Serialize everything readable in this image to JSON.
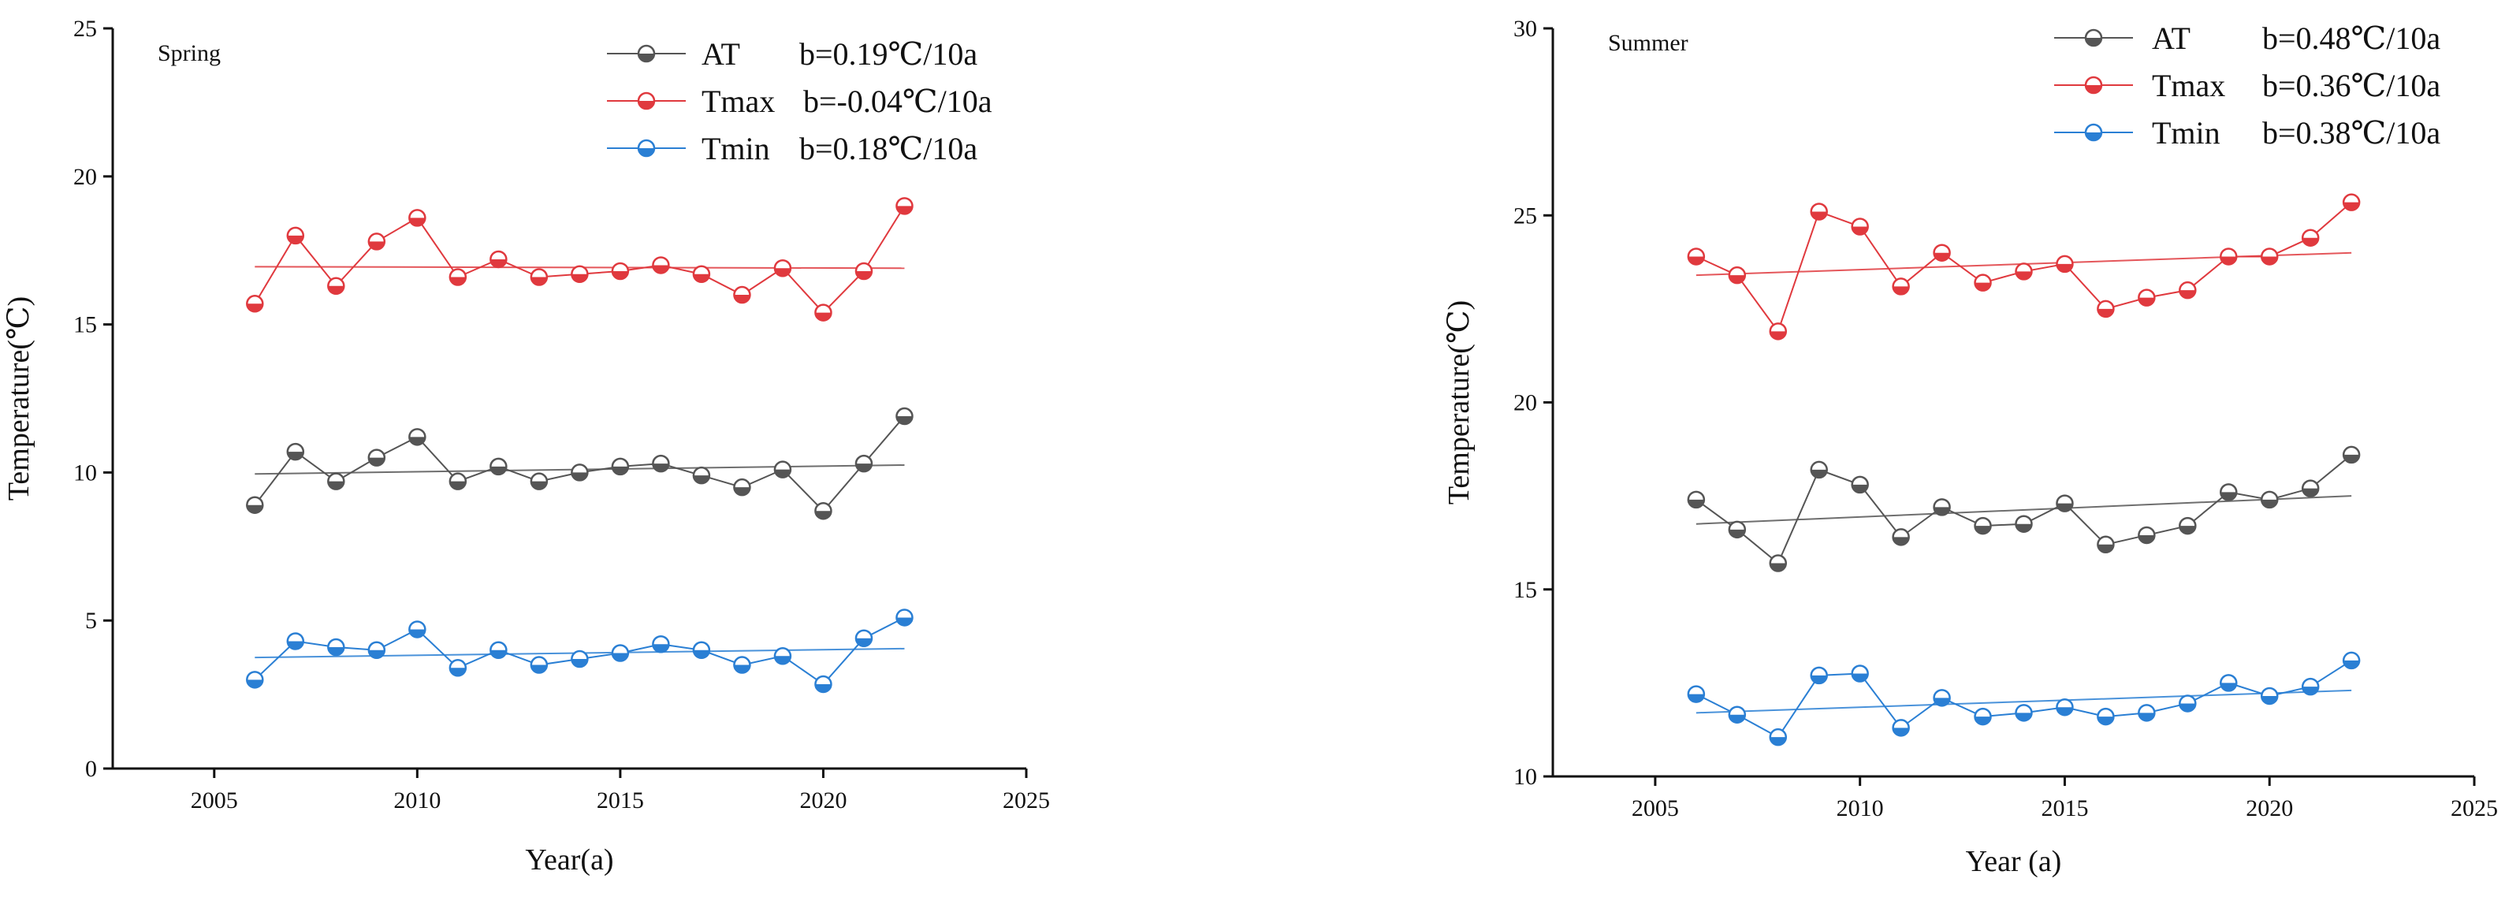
{
  "chart_data": [
    {
      "type": "line",
      "panel_label": "Spring",
      "xlabel": "Year(a)",
      "ylabel": "Temperature(℃)",
      "xlim": [
        2002.5,
        2025
      ],
      "ylim": [
        0,
        25
      ],
      "xticks": [
        2005,
        2010,
        2015,
        2020,
        2025
      ],
      "yticks": [
        0,
        5,
        10,
        15,
        20,
        25
      ],
      "grid": false,
      "legend_position": "top-right",
      "x": [
        2006,
        2007,
        2008,
        2009,
        2010,
        2011,
        2012,
        2013,
        2014,
        2015,
        2016,
        2017,
        2018,
        2019,
        2020,
        2021,
        2022
      ],
      "series": [
        {
          "name": "AT",
          "slope_label": "b=0.19℃/10a",
          "color": "#555555",
          "values": [
            8.9,
            10.7,
            9.7,
            10.5,
            11.2,
            9.7,
            10.2,
            9.7,
            10.0,
            10.2,
            10.3,
            9.9,
            9.5,
            10.1,
            8.7,
            10.3,
            11.9
          ],
          "trend": [
            9.95,
            10.25
          ]
        },
        {
          "name": "Tmax",
          "slope_label": "b=-0.04℃/10a",
          "color": "#e0393e",
          "values": [
            15.7,
            18.0,
            16.3,
            17.8,
            18.6,
            16.6,
            17.2,
            16.6,
            16.7,
            16.8,
            17.0,
            16.7,
            16.0,
            16.9,
            15.4,
            16.8,
            19.0
          ],
          "trend": [
            16.95,
            16.9
          ]
        },
        {
          "name": "Tmin",
          "slope_label": "b=0.18℃/10a",
          "color": "#2a7fd4",
          "values": [
            3.0,
            4.3,
            4.1,
            4.0,
            4.7,
            3.4,
            4.0,
            3.5,
            3.7,
            3.9,
            4.2,
            4.0,
            3.5,
            3.8,
            2.85,
            4.4,
            5.1
          ],
          "trend": [
            3.75,
            4.05
          ]
        }
      ]
    },
    {
      "type": "line",
      "panel_label": "Summer",
      "xlabel": "Year (a)",
      "ylabel": "Temperature(℃)",
      "xlim": [
        2002.5,
        2025
      ],
      "ylim": [
        10,
        30
      ],
      "xticks": [
        2005,
        2010,
        2015,
        2020,
        2025
      ],
      "yticks": [
        10,
        15,
        20,
        25,
        30
      ],
      "grid": false,
      "legend_position": "top-right",
      "x": [
        2006,
        2007,
        2008,
        2009,
        2010,
        2011,
        2012,
        2013,
        2014,
        2015,
        2016,
        2017,
        2018,
        2019,
        2020,
        2021,
        2022
      ],
      "series": [
        {
          "name": "AT",
          "slope_label": "b=0.48℃/10a",
          "color": "#555555",
          "values": [
            17.4,
            16.6,
            15.7,
            18.2,
            17.8,
            16.4,
            17.2,
            16.7,
            16.75,
            17.3,
            16.2,
            16.45,
            16.7,
            17.6,
            17.4,
            17.7,
            18.6
          ],
          "trend": [
            16.75,
            17.5
          ]
        },
        {
          "name": "Tmax",
          "slope_label": "b=0.36℃/10a",
          "color": "#e0393e",
          "values": [
            23.9,
            23.4,
            21.9,
            25.1,
            24.7,
            23.1,
            24.0,
            23.2,
            23.5,
            23.7,
            22.5,
            22.8,
            23.0,
            23.9,
            23.9,
            24.4,
            25.35
          ],
          "trend": [
            23.4,
            24.0
          ]
        },
        {
          "name": "Tmin",
          "slope_label": "b=0.38℃/10a",
          "color": "#2a7fd4",
          "values": [
            12.2,
            11.65,
            11.05,
            12.7,
            12.75,
            11.3,
            12.1,
            11.6,
            11.7,
            11.85,
            11.6,
            11.7,
            11.95,
            12.5,
            12.15,
            12.4,
            13.1
          ],
          "trend": [
            11.7,
            12.3
          ]
        }
      ]
    }
  ]
}
